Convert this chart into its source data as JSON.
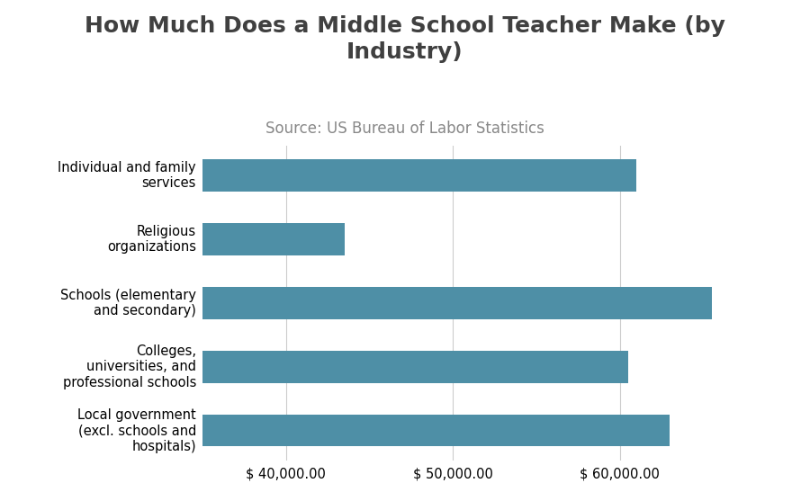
{
  "title": "How Much Does a Middle School Teacher Make (by\nIndustry)",
  "subtitle": "Source: US Bureau of Labor Statistics",
  "categories": [
    "Local government\n(excl. schools and\nhospitals)",
    "Colleges,\nuniversities, and\nprofessional schools",
    "Schools (elementary\nand secondary)",
    "Religious\norganizations",
    "Individual and family\nservices"
  ],
  "values": [
    63000,
    60500,
    65500,
    43500,
    61000
  ],
  "bar_color": "#4e8fa6",
  "background_color": "#ffffff",
  "xlim": [
    35000,
    68000
  ],
  "xticks": [
    40000,
    50000,
    60000
  ],
  "xtick_labels": [
    "$ 40,000.00",
    "$ 50,000.00",
    "$ 60,000.00"
  ],
  "title_fontsize": 18,
  "subtitle_fontsize": 12,
  "tick_label_fontsize": 10.5,
  "bar_height": 0.5
}
